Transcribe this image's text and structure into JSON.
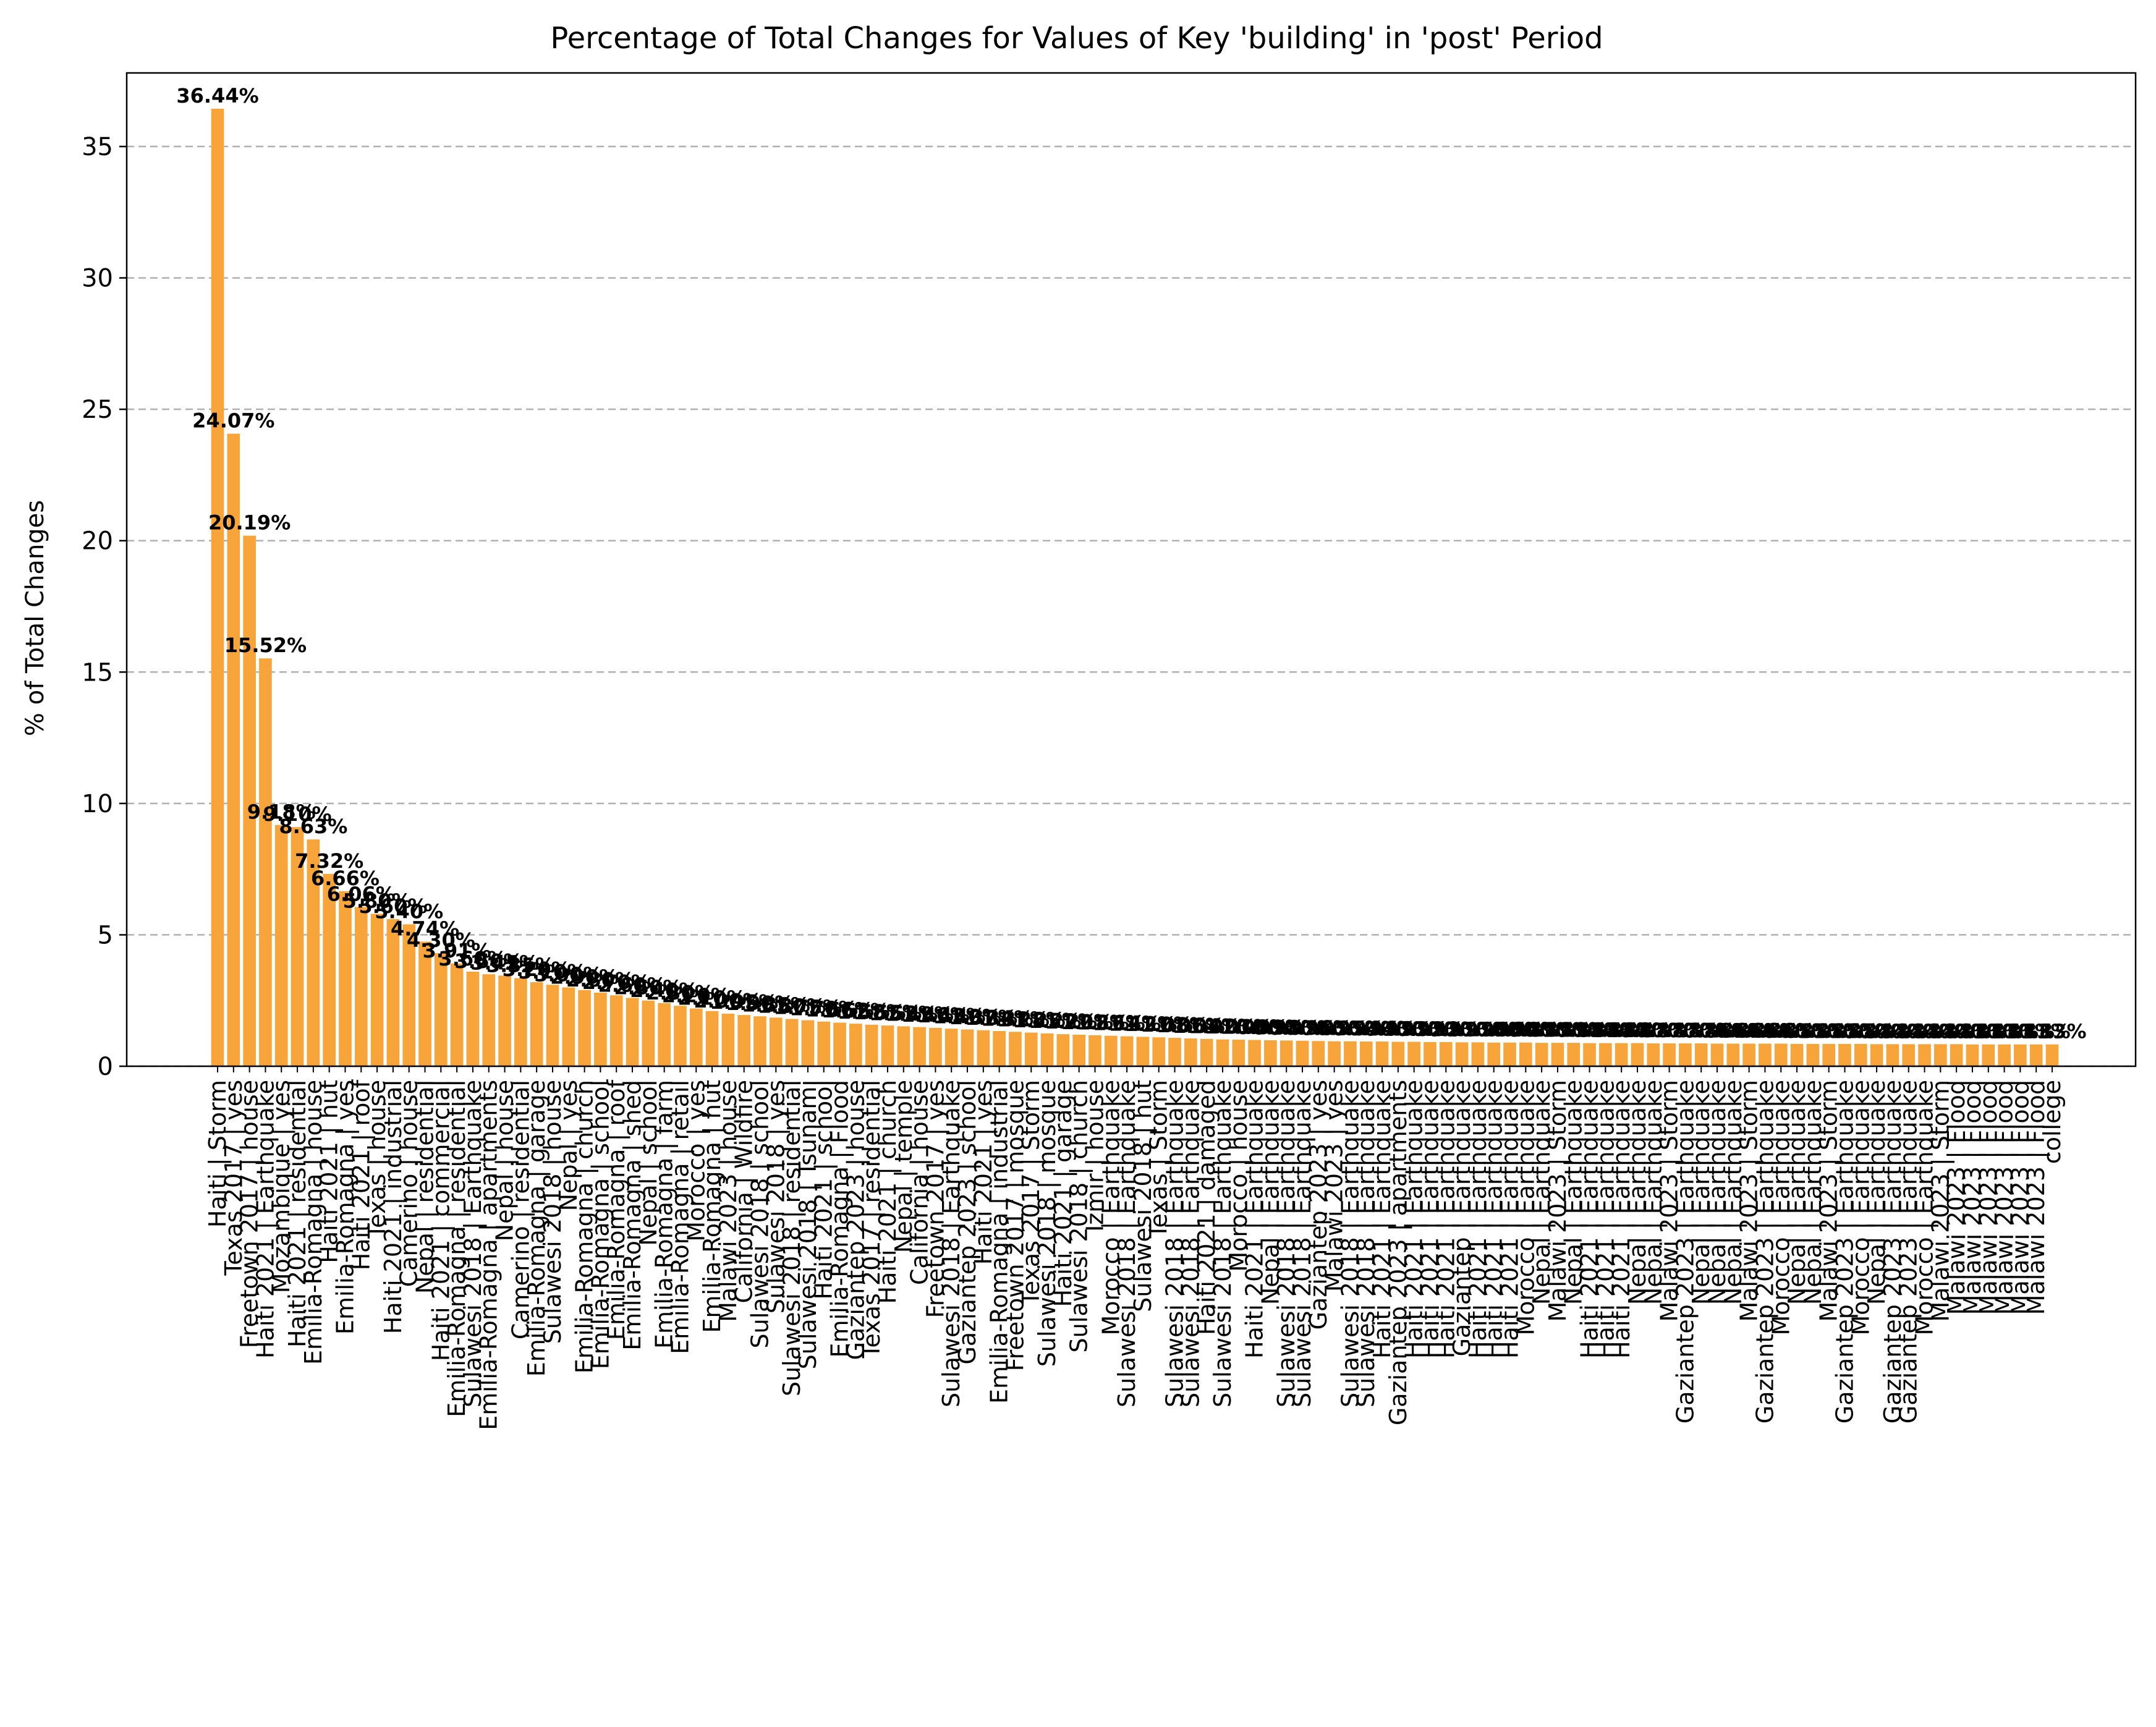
{
  "chart_data": {
    "type": "bar",
    "title": "Percentage of Total Changes for Values of Key 'building' in 'post' Period",
    "xlabel": "",
    "ylabel": "% of Total Changes",
    "ylim": [
      0,
      37.8
    ],
    "yticks": [
      0,
      5,
      10,
      15,
      20,
      25,
      30,
      35
    ],
    "grid": "y-dashed",
    "bar_color": "#f7a43a",
    "label_decimals": 2,
    "categories": [
      "Haiti | Storm",
      "Texas 2017 | yes",
      "Freetown 2017 | house",
      "Haiti 2021 | Earthquake",
      "Mozambique | yes",
      "Haiti 2021 | residential",
      "Emilia-Romagna | house",
      "Haiti 2021 | hut",
      "Emilia-Romagna | yes",
      "Haiti 2021 | roof",
      "Texas | house",
      "Haiti 2021 | industrial",
      "Camerino | house",
      "Nepal | residential",
      "Haiti 2021 | commercial",
      "Emilia-Romagna | residential",
      "Sulawesi 2018 | Earthquake",
      "Emilia-Romagna | apartments",
      "Nepal | house",
      "Camerino | residential",
      "Emilia-Romagna | garage",
      "Sulawesi 2018 | house",
      "Nepal | yes",
      "Emilia-Romagna | church",
      "Emilia-Romagna | school",
      "Emilia-Romagna | roof",
      "Emilia-Romagna | shed",
      "Nepal | school",
      "Emilia-Romagna | farm",
      "Emilia-Romagna | retail",
      "Morocco | yes",
      "Emilia-Romagna | hut",
      "Malawi 2023 | house",
      "California | Wildfire",
      "Sulawesi 2018 | school",
      "Sulawesi 2018 | yes",
      "Sulawesi 2018 | residential",
      "Sulawesi 2018 | Tsunami",
      "Haiti 2021 | school",
      "Emilia-Romagna | Flood",
      "Gaziantep 2023 | house",
      "Texas 2017 | residential",
      "Haiti 2021 | church",
      "Nepal | temple",
      "California | house",
      "Freetown 2017 | yes",
      "Sulawesi 2018 | Earthquake",
      "Gaziantep 2023 | school",
      "Haiti 2021 | yes",
      "Emilia-Romagna | industrial",
      "Freetown 2017 | mosque",
      "Texas 2017 | Storm",
      "Sulawesi 2018 | mosque",
      "Haiti 2021 | garage",
      "Sulawesi 2018 | church",
      "Izmir | house",
      "Morocco | Earthquake",
      "Sulawesi 2018 | Earthquake",
      "Sulawesi 2018 | hut",
      "Texas | Storm",
      "Sulawesi 2018 | Earthquake",
      "Sulawesi 2018 | Earthquake",
      "Haiti 2021 | damaged",
      "Sulawesi 2018 | Earthquake",
      "Morocco | house",
      "Haiti 2021 | Earthquake",
      "Nepal | Earthquake",
      "Sulawesi 2018 | Earthquake",
      "Sulawesi 2018 | Earthquake",
      "Gaziantep 2023 | yes",
      "Malawi 2023 | yes",
      "Sulawesi 2018 | Earthquake",
      "Sulawesi 2018 | Earthquake",
      "Haiti 2021 | Earthquake",
      "Gaziantep 2023 | apartments",
      "Haiti 2021 | Earthquake",
      "Haiti 2021 | Earthquake",
      "Haiti 2021 | Earthquake",
      "Gaziantep | Earthquake",
      "Haiti 2021 | Earthquake",
      "Haiti 2021 | Earthquake",
      "Haiti 2021 | Earthquake",
      "Morocco | Earthquake",
      "Nepal | Earthquake",
      "Malawi 2023 | Storm",
      "Nepal | Earthquake",
      "Haiti 2021 | Earthquake",
      "Haiti 2021 | Earthquake",
      "Haiti 2021 | Earthquake",
      "Nepal | Earthquake",
      "Nepal | Earthquake",
      "Malawi 2023 | Storm",
      "Gaziantep 2023 | Earthquake",
      "Nepal | Earthquake",
      "Nepal | Earthquake",
      "Nepal | Earthquake",
      "Malawi 2023 | Storm",
      "Gaziantep 2023 | Earthquake",
      "Morocco | Earthquake",
      "Nepal | Earthquake",
      "Nepal | Earthquake",
      "Malawi 2023 | Storm",
      "Gaziantep 2023 | Earthquake",
      "Morocco | Earthquake",
      "Nepal | Earthquake",
      "Gaziantep 2023 | Earthquake",
      "Gaziantep 2023 | Earthquake",
      "Morocco | Earthquake",
      "Malawi 2023 | Storm",
      "Malawi 2023 | Flood",
      "Malawi 2023 | Flood",
      "Malawi 2023 | Flood",
      "Malawi 2023 | Flood",
      "Malawi 2023 | Flood",
      "Malawi 2023 | Flood",
      "college"
    ],
    "values": [
      36.44,
      24.07,
      20.19,
      15.52,
      9.18,
      9.1,
      8.63,
      7.32,
      6.66,
      6.06,
      5.8,
      5.6,
      5.4,
      4.74,
      4.3,
      3.91,
      3.6,
      3.5,
      3.45,
      3.35,
      3.2,
      3.1,
      3.0,
      2.9,
      2.8,
      2.7,
      2.6,
      2.5,
      2.4,
      2.3,
      2.2,
      2.1,
      2.0,
      1.95,
      1.9,
      1.85,
      1.8,
      1.75,
      1.7,
      1.66,
      1.62,
      1.58,
      1.55,
      1.52,
      1.49,
      1.46,
      1.43,
      1.4,
      1.37,
      1.34,
      1.31,
      1.28,
      1.25,
      1.22,
      1.2,
      1.18,
      1.16,
      1.14,
      1.12,
      1.1,
      1.08,
      1.06,
      1.04,
      1.02,
      1.01,
      1.0,
      0.99,
      0.98,
      0.97,
      0.96,
      0.95,
      0.95,
      0.94,
      0.94,
      0.93,
      0.93,
      0.92,
      0.92,
      0.91,
      0.91,
      0.9,
      0.9,
      0.9,
      0.89,
      0.89,
      0.89,
      0.88,
      0.88,
      0.88,
      0.88,
      0.87,
      0.87,
      0.87,
      0.87,
      0.86,
      0.86,
      0.86,
      0.86,
      0.86,
      0.85,
      0.85,
      0.85,
      0.85,
      0.85,
      0.84,
      0.84,
      0.84,
      0.84,
      0.84,
      0.84,
      0.83,
      0.83,
      0.83,
      0.83,
      0.83,
      0.83
    ]
  }
}
